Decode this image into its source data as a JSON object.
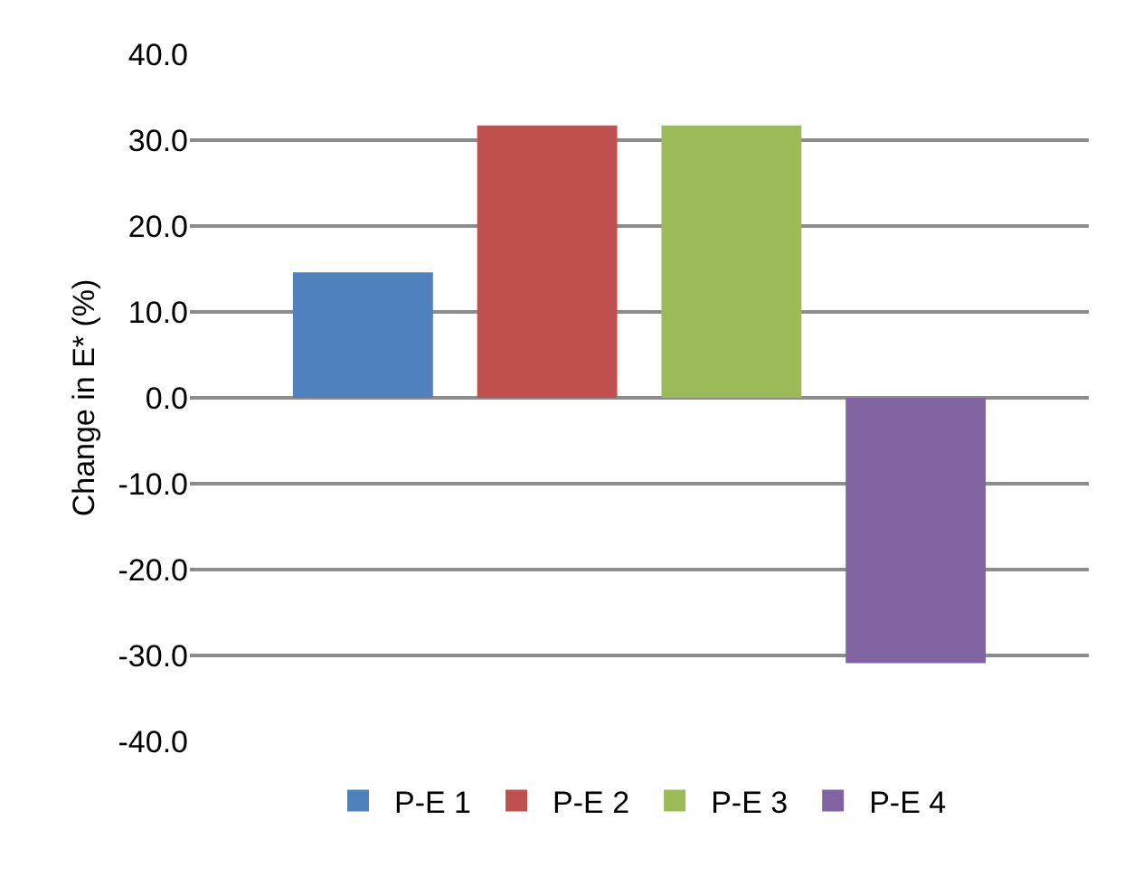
{
  "chart_data": {
    "type": "bar",
    "ylabel": "Change in E* (%)",
    "categories": [
      null
    ],
    "series": [
      {
        "name": "P-E 1",
        "color": "#4f81bd",
        "values": [
          14.6
        ]
      },
      {
        "name": "P-E 2",
        "color": "#c0504d",
        "values": [
          31.7
        ]
      },
      {
        "name": "P-E 3",
        "color": "#9bbb59",
        "values": [
          31.7
        ]
      },
      {
        "name": "P-E 4",
        "color": "#8064a2",
        "values": [
          -30.9
        ]
      }
    ],
    "ylim": [
      -40,
      40
    ],
    "yticks": [
      {
        "value": -40,
        "label": "-40.0"
      },
      {
        "value": -30,
        "label": "-30.0"
      },
      {
        "value": -20,
        "label": "-20.0"
      },
      {
        "value": -10,
        "label": "-10.0"
      },
      {
        "value": 0,
        "label": "0.0"
      },
      {
        "value": 10,
        "label": "10.0"
      },
      {
        "value": 20,
        "label": "20.0"
      },
      {
        "value": 30,
        "label": "30.0"
      },
      {
        "value": 40,
        "label": "40.0"
      }
    ],
    "grid": "y",
    "legend": "bottom",
    "tick_labels": "y"
  }
}
